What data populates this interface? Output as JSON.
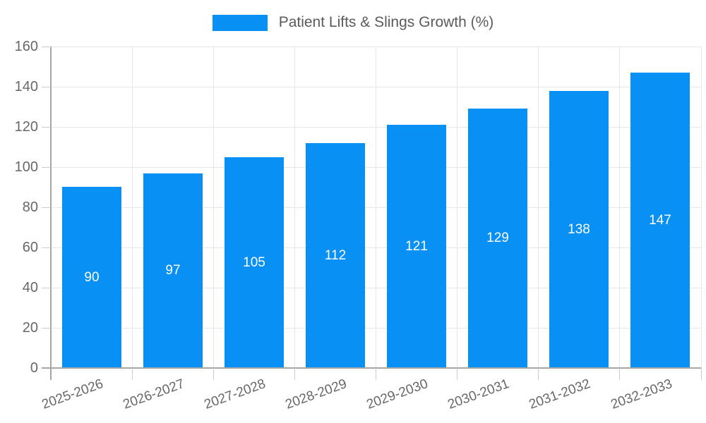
{
  "chart_data": {
    "type": "bar",
    "title": "Patient Lifts & Slings Growth (%)",
    "categories": [
      "2025-2026",
      "2026-2027",
      "2027-2028",
      "2028-2029",
      "2029-2030",
      "2030-2031",
      "2031-2032",
      "2032-2033"
    ],
    "values": [
      90,
      97,
      105,
      112,
      121,
      129,
      138,
      147
    ],
    "xlabel": "",
    "ylabel": "",
    "ylim": [
      0,
      160
    ],
    "yticks": [
      0,
      20,
      40,
      60,
      80,
      100,
      120,
      140,
      160
    ],
    "grid": true,
    "legend_position": "top-center",
    "x_label_rotation_deg": -20,
    "colors": {
      "bar": "#0990F4",
      "value_label": "#FFFFFF",
      "axis_line": "#A6A6A6",
      "gridline": "#E7E7E7",
      "tick": "#CCCCCC",
      "axis_text": "#686868",
      "title_text": "#5B5B5B",
      "background": "#FFFFFF"
    }
  }
}
